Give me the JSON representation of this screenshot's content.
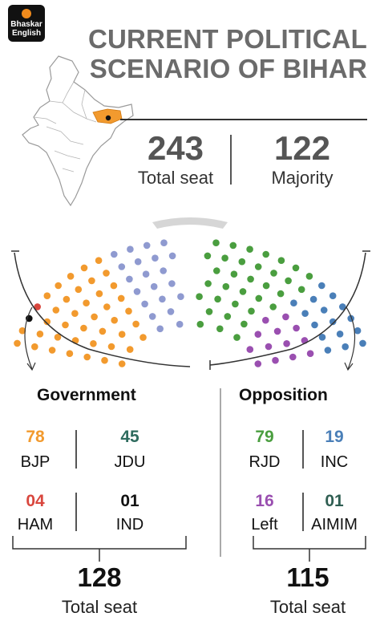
{
  "logo": {
    "line1": "Bhaskar",
    "line2": "English"
  },
  "title": {
    "line1": "CURRENT POLITICAL",
    "line2": "SCENARIO OF BIHAR"
  },
  "summary": {
    "total": {
      "value": "243",
      "label": "Total seat"
    },
    "majority": {
      "value": "122",
      "label": "Majority"
    }
  },
  "colors": {
    "bjp": "#f29a2e",
    "jdu": "#2e6b5e",
    "ham": "#d9473e",
    "ind": "#111111",
    "rjd": "#4a9e3f",
    "inc": "#4a7fb8",
    "left": "#9a4fb0",
    "aimim": "#2f5e52",
    "nda_hall": "#8f9ad0"
  },
  "government": {
    "heading": "Government",
    "parties": [
      {
        "name": "BJP",
        "seats": "78",
        "color": "#f29a2e"
      },
      {
        "name": "JDU",
        "seats": "45",
        "color": "#2e6b5e"
      },
      {
        "name": "HAM",
        "seats": "04",
        "color": "#d9473e"
      },
      {
        "name": "IND",
        "seats": "01",
        "color": "#111111"
      }
    ],
    "total": {
      "value": "128",
      "label": "Total seat"
    }
  },
  "opposition": {
    "heading": "Opposition",
    "parties": [
      {
        "name": "RJD",
        "seats": "79",
        "color": "#4a9e3f"
      },
      {
        "name": "INC",
        "seats": "19",
        "color": "#4a7fb8"
      },
      {
        "name": "Left",
        "seats": "16",
        "color": "#9a4fb0"
      },
      {
        "name": "AIMIM",
        "seats": "01",
        "color": "#2f5e52"
      }
    ],
    "total": {
      "value": "115",
      "label": "Total seat"
    }
  }
}
